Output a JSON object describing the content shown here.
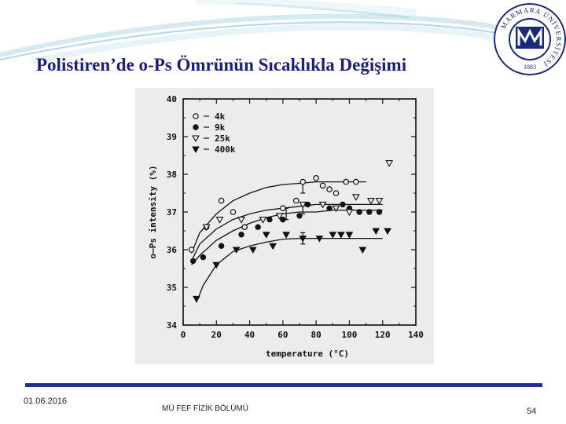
{
  "slide": {
    "title": "Polistiren’de o-Ps Ömrünün Sıcaklıkla Değişimi",
    "footer_date": "01.06.2016",
    "footer_dept": "MÜ FEF FİZİK BÖLÜMÜ",
    "page_number": "54"
  },
  "logo": {
    "ring_text": "MARMARA ÜNİVERSİTESİ",
    "year": "1883",
    "colors": {
      "ring": "#1a2a7a",
      "accent": "#1a2a7a"
    }
  },
  "theme": {
    "accent": "#1f2f8a",
    "title_color": "#1d1d7a",
    "chart_background": "#ececec"
  },
  "chart_data": {
    "type": "scatter",
    "title": "",
    "xlabel": "temperature (°C)",
    "ylabel": "o–Ps intensity (%)",
    "xlim": [
      0,
      140
    ],
    "ylim": [
      34,
      40
    ],
    "xticks": [
      "0",
      "20",
      "40",
      "60",
      "80",
      "100",
      "120",
      "140"
    ],
    "yticks": [
      "34",
      "35",
      "36",
      "37",
      "38",
      "39",
      "40"
    ],
    "grid": false,
    "legend_position": "top-left",
    "series": [
      {
        "name": "4k",
        "marker": "circle-open",
        "points": [
          [
            5,
            36.0
          ],
          [
            14,
            36.6
          ],
          [
            23,
            37.3
          ],
          [
            30,
            37.0
          ],
          [
            37,
            36.6
          ],
          [
            60,
            37.1
          ],
          [
            68,
            37.3
          ],
          [
            72,
            37.8
          ],
          [
            80,
            37.9
          ],
          [
            84,
            37.7
          ],
          [
            88,
            37.6
          ],
          [
            92,
            37.5
          ],
          [
            98,
            37.8
          ],
          [
            104,
            37.8
          ]
        ],
        "fit": [
          [
            5,
            35.9
          ],
          [
            10,
            36.45
          ],
          [
            20,
            36.95
          ],
          [
            30,
            37.3
          ],
          [
            40,
            37.5
          ],
          [
            50,
            37.65
          ],
          [
            60,
            37.73
          ],
          [
            70,
            37.76
          ],
          [
            80,
            37.8
          ],
          [
            90,
            37.8
          ],
          [
            100,
            37.8
          ],
          [
            110,
            37.8
          ]
        ]
      },
      {
        "name": "9k",
        "marker": "circle-filled",
        "points": [
          [
            6,
            35.7
          ],
          [
            12,
            35.8
          ],
          [
            23,
            36.1
          ],
          [
            35,
            36.4
          ],
          [
            45,
            36.6
          ],
          [
            52,
            36.8
          ],
          [
            60,
            36.8
          ],
          [
            70,
            36.9
          ],
          [
            75,
            37.2
          ],
          [
            88,
            37.1
          ],
          [
            96,
            37.2
          ],
          [
            100,
            37.1
          ],
          [
            106,
            37.0
          ],
          [
            112,
            37.0
          ],
          [
            118,
            37.0
          ]
        ],
        "fit": [
          [
            5,
            35.6
          ],
          [
            10,
            35.85
          ],
          [
            20,
            36.25
          ],
          [
            30,
            36.5
          ],
          [
            40,
            36.7
          ],
          [
            50,
            36.85
          ],
          [
            60,
            36.95
          ],
          [
            70,
            37.0
          ],
          [
            80,
            37.0
          ],
          [
            90,
            37.05
          ],
          [
            100,
            37.05
          ],
          [
            110,
            37.05
          ],
          [
            120,
            37.05
          ]
        ]
      },
      {
        "name": "25k",
        "marker": "triangle-open",
        "points": [
          [
            14,
            36.6
          ],
          [
            22,
            36.8
          ],
          [
            35,
            36.8
          ],
          [
            48,
            36.8
          ],
          [
            58,
            36.9
          ],
          [
            72,
            37.2
          ],
          [
            84,
            37.2
          ],
          [
            92,
            37.1
          ],
          [
            100,
            37.0
          ],
          [
            104,
            37.4
          ],
          [
            113,
            37.3
          ],
          [
            118,
            37.3
          ],
          [
            124,
            38.3
          ]
        ],
        "fit": [
          [
            5,
            35.7
          ],
          [
            10,
            36.15
          ],
          [
            20,
            36.55
          ],
          [
            30,
            36.8
          ],
          [
            40,
            36.95
          ],
          [
            50,
            37.05
          ],
          [
            60,
            37.1
          ],
          [
            70,
            37.15
          ],
          [
            80,
            37.2
          ],
          [
            90,
            37.2
          ],
          [
            100,
            37.2
          ],
          [
            110,
            37.2
          ],
          [
            120,
            37.2
          ]
        ]
      },
      {
        "name": "400k",
        "marker": "triangle-filled",
        "points": [
          [
            8,
            34.7
          ],
          [
            20,
            35.6
          ],
          [
            32,
            36.0
          ],
          [
            42,
            36.0
          ],
          [
            50,
            36.4
          ],
          [
            54,
            36.1
          ],
          [
            62,
            36.4
          ],
          [
            72,
            36.3
          ],
          [
            82,
            36.3
          ],
          [
            90,
            36.4
          ],
          [
            95,
            36.4
          ],
          [
            100,
            36.4
          ],
          [
            108,
            36.0
          ],
          [
            116,
            36.5
          ],
          [
            123,
            36.5
          ]
        ],
        "fit": [
          [
            8,
            34.6
          ],
          [
            12,
            35.05
          ],
          [
            20,
            35.6
          ],
          [
            30,
            35.95
          ],
          [
            40,
            36.1
          ],
          [
            50,
            36.2
          ],
          [
            60,
            36.28
          ],
          [
            70,
            36.3
          ],
          [
            80,
            36.3
          ],
          [
            90,
            36.3
          ],
          [
            100,
            36.3
          ],
          [
            110,
            36.3
          ],
          [
            120,
            36.3
          ]
        ]
      }
    ],
    "error_bars": [
      {
        "x": 72,
        "y": 37.65,
        "err": 0.15
      },
      {
        "x": 72,
        "y": 37.1,
        "err": 0.15
      },
      {
        "x": 62,
        "y": 36.95,
        "err": 0.15
      },
      {
        "x": 72,
        "y": 36.3,
        "err": 0.15
      }
    ]
  }
}
